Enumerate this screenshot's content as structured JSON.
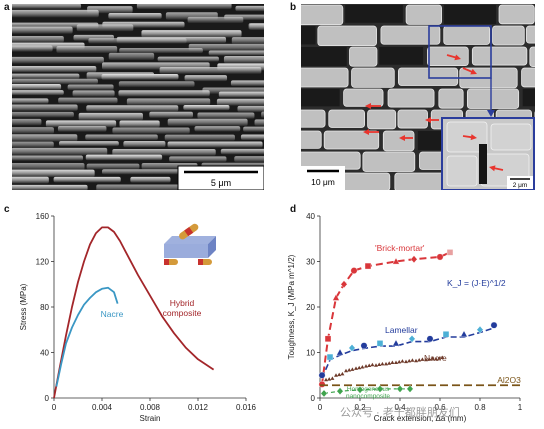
{
  "panels": {
    "a": {
      "label": "a",
      "scalebar": "5 μm"
    },
    "b": {
      "label": "b",
      "scalebar": "10 μm",
      "inset_scalebar": "2 μm"
    },
    "c": {
      "label": "c"
    },
    "d": {
      "label": "d"
    }
  },
  "watermark": "公众号 · 老千都胖朋友们",
  "colors": {
    "hybrid": "#a3262a",
    "nacre_c": "#3a97c4",
    "brick": "#d9363a",
    "lamellar": "#233c9c",
    "lamellar_light": "#4db0d6",
    "nacre_d": "#6e3a2a",
    "al2o3": "#7a5418",
    "homogeneous": "#3fa34d",
    "inset_border": "#2b3d9c",
    "arrow": "#e8352e"
  },
  "chart_data": [
    {
      "panel": "c",
      "type": "line",
      "xlabel": "Strain",
      "ylabel": "Stress (MPa)",
      "xlim": [
        0,
        0.016
      ],
      "ylim": [
        0,
        160
      ],
      "xticks": [
        "0",
        "0.004",
        "0.008",
        "0.012",
        "0.016"
      ],
      "yticks": [
        "0",
        "40",
        "80",
        "120",
        "160"
      ],
      "series": [
        {
          "name": "Hybrid composite",
          "label_lines": [
            "Hybrid",
            "composite"
          ],
          "x": [
            0,
            0.0005,
            0.001,
            0.0015,
            0.002,
            0.0025,
            0.003,
            0.0035,
            0.004,
            0.0045,
            0.005,
            0.0055,
            0.006,
            0.007,
            0.008,
            0.009,
            0.01,
            0.011,
            0.012,
            0.0133
          ],
          "y": [
            0,
            28,
            55,
            80,
            102,
            120,
            135,
            145,
            150,
            150,
            146,
            138,
            128,
            108,
            90,
            72,
            57,
            44,
            34,
            25
          ]
        },
        {
          "name": "Nacre",
          "x": [
            0.0002,
            0.0006,
            0.001,
            0.0015,
            0.002,
            0.0025,
            0.003,
            0.0035,
            0.004,
            0.0045,
            0.005,
            0.0053
          ],
          "y": [
            10,
            30,
            48,
            62,
            73,
            82,
            88,
            93,
            96,
            97,
            93,
            83
          ]
        }
      ]
    },
    {
      "panel": "d",
      "type": "scatter",
      "xlabel": "Crack extension, Δa (mm)",
      "ylabel": "Toughness, K_J (MPa m^1/2)",
      "xlim": [
        0,
        1
      ],
      "ylim": [
        0,
        40
      ],
      "xticks": [
        "0",
        "0.2",
        "0.4",
        "0.6",
        "0.8",
        "1"
      ],
      "yticks": [
        "0",
        "10",
        "20",
        "30",
        "40"
      ],
      "annotations": [
        "K_J = (J·E)^1/2"
      ],
      "series": [
        {
          "name": "'Brick-mortar'",
          "x": [
            0.01,
            0.04,
            0.08,
            0.12,
            0.17,
            0.24,
            0.38,
            0.47,
            0.6,
            0.65
          ],
          "y": [
            3,
            13,
            22,
            25,
            28,
            29,
            30,
            30.5,
            31,
            32
          ]
        },
        {
          "name": "Lamellar",
          "x": [
            0.01,
            0.05,
            0.1,
            0.16,
            0.22,
            0.3,
            0.38,
            0.46,
            0.55,
            0.63,
            0.72,
            0.8,
            0.87
          ],
          "y": [
            5,
            9,
            10,
            11,
            11.5,
            12,
            12,
            13,
            13,
            14,
            14,
            15,
            16
          ]
        },
        {
          "name": "Nacre",
          "x": [
            0.03,
            0.08,
            0.13,
            0.18,
            0.23,
            0.28,
            0.33,
            0.38,
            0.43,
            0.48,
            0.53,
            0.58
          ],
          "y": [
            4,
            5,
            6,
            6.5,
            7,
            7.2,
            7.5,
            7.8,
            8,
            8.2,
            8.4,
            8.6
          ]
        },
        {
          "name": "Al2O3",
          "x": [
            0,
            0.9
          ],
          "y": [
            2.8,
            2.8
          ]
        },
        {
          "name": "Homogeneous nanocomposite",
          "label_lines": [
            "Homogeneous",
            "nanocomposite"
          ],
          "x": [
            0.02,
            0.1,
            0.2,
            0.3,
            0.4,
            0.45
          ],
          "y": [
            1,
            1.5,
            1.8,
            2,
            2,
            2
          ]
        }
      ]
    }
  ]
}
